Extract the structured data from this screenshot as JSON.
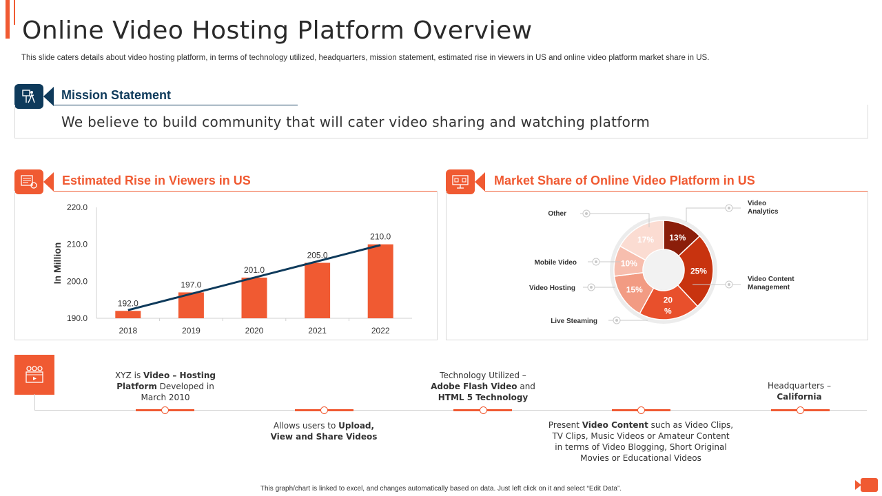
{
  "header": {
    "title": "Online Video Hosting Platform Overview",
    "subtitle": "This slide caters details about video hosting platform, in terms of technology utilized, headquarters, mission statement, estimated rise in viewers in US and online video platform market share in US."
  },
  "mission": {
    "heading": "Mission Statement",
    "text": "We believe to build community that will cater video sharing and watching platform"
  },
  "viewers": {
    "heading": "Estimated Rise in Viewers in US"
  },
  "market": {
    "heading": "Market Share of Online Video Platform in US"
  },
  "colors": {
    "accent": "#F05A32",
    "navy": "#0E3A5B",
    "trend": "#0E3A5B"
  },
  "chart_data": [
    {
      "type": "bar",
      "title": "Estimated Rise in Viewers in US",
      "ylabel": "In Million",
      "categories": [
        "2018",
        "2019",
        "2020",
        "2021",
        "2022"
      ],
      "values": [
        192.0,
        197.0,
        201.0,
        205.0,
        210.0
      ],
      "value_labels": [
        "192.0",
        "197.0",
        "201.0",
        "205.0",
        "210.0"
      ],
      "yticks": [
        "190.0",
        "200.0",
        "210.0",
        "220.0"
      ],
      "ylim": [
        190,
        220
      ],
      "trendline": true,
      "grid": false
    },
    {
      "type": "pie",
      "title": "Market Share of Online Video Platform in US",
      "donut": true,
      "slices": [
        {
          "label": "Video Analytics",
          "value": 13,
          "text": "13%",
          "color": "#8B1E0A",
          "text_color": "#ffffff"
        },
        {
          "label": "Video Content Management",
          "value": 25,
          "text": "25%",
          "color": "#C8330F",
          "text_color": "#ffffff"
        },
        {
          "label": "Live Steaming",
          "value": 20,
          "text": "20 %",
          "color": "#E8502C",
          "text_color": "#ffffff"
        },
        {
          "label": "Video Hosting",
          "value": 15,
          "text": "15%",
          "color": "#F29B83",
          "text_color": "#ffffff"
        },
        {
          "label": "Mobile Video",
          "value": 10,
          "text": "10%",
          "color": "#F7BEAE",
          "text_color": "#ffffff"
        },
        {
          "label": "Other",
          "value": 17,
          "text": "17%",
          "color": "#FBDCD2",
          "text_color": "#ffffff"
        }
      ]
    }
  ],
  "timeline": {
    "items": [
      {
        "pre": "XYZ is ",
        "bold": "Video – Hosting Platform",
        "post": " Developed in March 2010"
      },
      {
        "pre": "Allows users to ",
        "bold": "Upload, View and Share Videos",
        "post": ""
      },
      {
        "pre": "Technology Utilized – ",
        "bold": "Adobe Flash Video",
        "mid": " and ",
        "bold2": "HTML 5 Technology"
      },
      {
        "pre": "Present ",
        "bold": "Video Content",
        "post": " such as Video Clips, TV Clips, Music Videos or Amateur Content in terms of Video Blogging, Short Original Movies or Educational Videos"
      },
      {
        "pre": "Headquarters – ",
        "bold": "California",
        "post": ""
      }
    ]
  },
  "footer": "This graph/chart is linked to excel, and changes automatically based on data. Just left click on it and select “Edit Data”."
}
